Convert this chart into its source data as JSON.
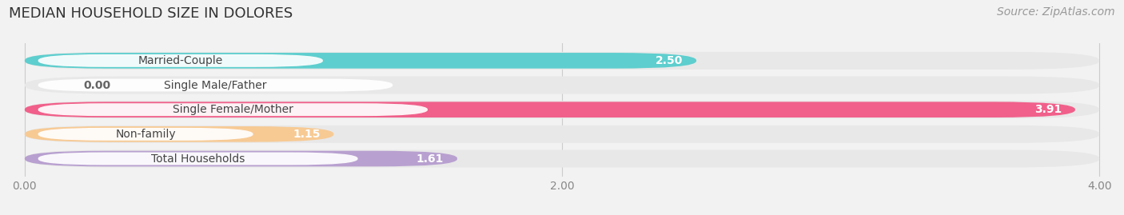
{
  "title": "MEDIAN HOUSEHOLD SIZE IN DOLORES",
  "source": "Source: ZipAtlas.com",
  "categories": [
    "Married-Couple",
    "Single Male/Father",
    "Single Female/Mother",
    "Non-family",
    "Total Households"
  ],
  "values": [
    2.5,
    0.0,
    3.91,
    1.15,
    1.61
  ],
  "bar_colors": [
    "#5ecece",
    "#a8bce8",
    "#f0608a",
    "#f7ca94",
    "#b8a0d0"
  ],
  "bar_bg_color": "#e8e8e8",
  "xlim_min": 0.0,
  "xlim_max": 4.0,
  "xticks": [
    0.0,
    2.0,
    4.0
  ],
  "xtick_labels": [
    "0.00",
    "2.00",
    "4.00"
  ],
  "title_fontsize": 13,
  "source_fontsize": 10,
  "label_fontsize": 10,
  "value_fontsize": 10,
  "background_color": "#f2f2f2",
  "bar_height": 0.72,
  "bar_spacing": 1.0
}
